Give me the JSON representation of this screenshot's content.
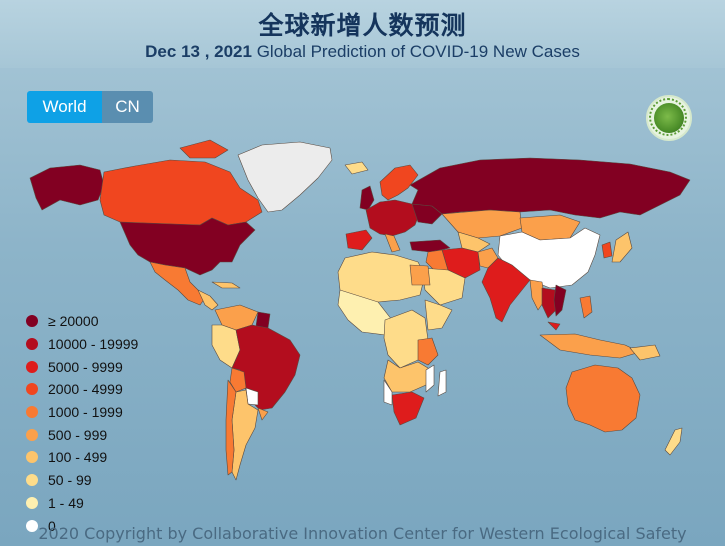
{
  "header": {
    "title_cn": "全球新增人数预测",
    "date": "Dec 13 , 2021",
    "subtitle": "Global Prediction of COVID-19 New Cases"
  },
  "toggle": {
    "world_label": "World",
    "cn_label": "CN",
    "active": "World"
  },
  "legend": [
    {
      "label": "≥ 20000",
      "color": "#820022"
    },
    {
      "label": "10000 - 19999",
      "color": "#b30d1e"
    },
    {
      "label": "5000 - 9999",
      "color": "#de1c1c"
    },
    {
      "label": "2000 - 4999",
      "color": "#f0461f"
    },
    {
      "label": "1000 - 1999",
      "color": "#f87a33"
    },
    {
      "label": "500 - 999",
      "color": "#fba04b"
    },
    {
      "label": "100 - 499",
      "color": "#fdc46b"
    },
    {
      "label": "50 - 99",
      "color": "#fedc8a"
    },
    {
      "label": "1 - 49",
      "color": "#fef0b0"
    },
    {
      "label": "0",
      "color": "#ffffff"
    }
  ],
  "footer": "2020 Copyright by Collaborative Innovation Center for Western Ecological Safety"
}
